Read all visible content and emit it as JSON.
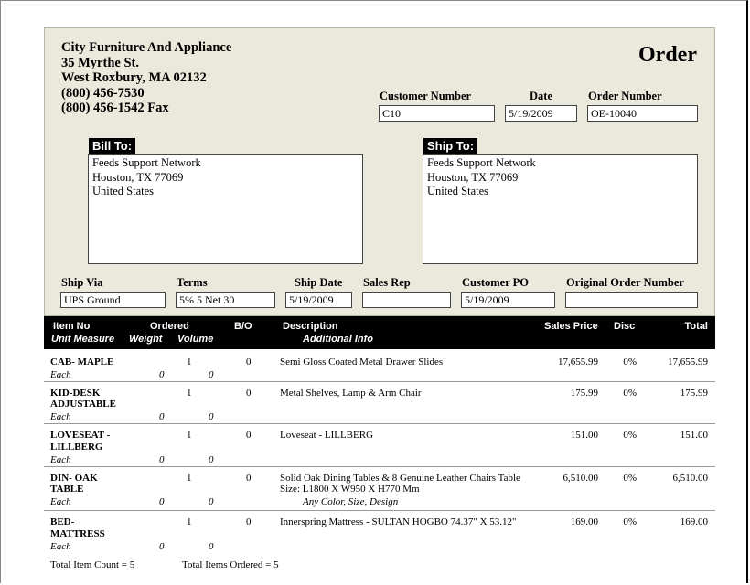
{
  "company": {
    "name": "City Furniture And Appliance",
    "street": "35 Myrthe St.",
    "city": "West Roxbury,  MA 02132",
    "phone": "(800) 456-7530",
    "fax": "(800) 456-1542 Fax"
  },
  "doc_title": "Order",
  "customer_number": {
    "label": "Customer Number",
    "value": "C10"
  },
  "date": {
    "label": "Date",
    "value": "5/19/2009"
  },
  "order_number": {
    "label": "Order Number",
    "value": "OE-10040"
  },
  "bill_to": {
    "label": "Bill To:",
    "line1": "Feeds Support Network",
    "line2": "Houston,  TX  77069",
    "line3": "United States"
  },
  "ship_to": {
    "label": "Ship To:",
    "line1": "Feeds Support Network",
    "line2": "Houston,  TX  77069",
    "line3": "United States"
  },
  "ship_via": {
    "label": "Ship Via",
    "value": "UPS Ground"
  },
  "terms": {
    "label": "Terms",
    "value": "5% 5 Net 30"
  },
  "ship_date": {
    "label": "Ship Date",
    "value": "5/19/2009"
  },
  "sales_rep": {
    "label": "Sales Rep",
    "value": ""
  },
  "customer_po": {
    "label": "Customer PO",
    "value": "5/19/2009"
  },
  "original_order": {
    "label": "Original Order Number",
    "value": ""
  },
  "columns": {
    "item_no": "Item No",
    "ordered": "Ordered",
    "bo": "B/O",
    "description": "Description",
    "sales_price": "Sales Price",
    "disc": "Disc",
    "total": "Total",
    "unit_measure": "Unit Measure",
    "weight": "Weight",
    "volume": "Volume",
    "additional_info": "Additional Info"
  },
  "items": [
    {
      "item_line1": "CAB- MAPLE",
      "item_line2": "",
      "ordered": "1",
      "bo": "0",
      "desc_line1": "Semi Gloss Coated Metal Drawer Slides",
      "desc_line2": "",
      "additional_info": "",
      "price": "17,655.99",
      "disc": "0%",
      "total": "17,655.99",
      "unit": "Each",
      "weight": "0",
      "volume": "0"
    },
    {
      "item_line1": "KID-DESK",
      "item_line2": "ADJUSTABLE",
      "ordered": "1",
      "bo": "0",
      "desc_line1": "Metal Shelves, Lamp  &  Arm Chair",
      "desc_line2": "",
      "additional_info": "",
      "price": "175.99",
      "disc": "0%",
      "total": "175.99",
      "unit": "Each",
      "weight": "0",
      "volume": "0"
    },
    {
      "item_line1": "LOVESEAT -",
      "item_line2": "LILLBERG",
      "ordered": "1",
      "bo": "0",
      "desc_line1": "Loveseat - LILLBERG",
      "desc_line2": "",
      "additional_info": "",
      "price": "151.00",
      "disc": "0%",
      "total": "151.00",
      "unit": "Each",
      "weight": "0",
      "volume": "0"
    },
    {
      "item_line1": "DIN- OAK",
      "item_line2": "TABLE",
      "ordered": "1",
      "bo": "0",
      "desc_line1": "Solid Oak Dining Tables & 8 Genuine Leather Chairs Table",
      "desc_line2": "Size: L1800 X W950 X H770 Mm",
      "additional_info": "Any Color, Size, Design",
      "price": "6,510.00",
      "disc": "0%",
      "total": "6,510.00",
      "unit": "Each",
      "weight": "0",
      "volume": "0"
    },
    {
      "item_line1": "BED-",
      "item_line2": "MATTRESS",
      "ordered": "1",
      "bo": "0",
      "desc_line1": "Innerspring Mattress - SULTAN HOGBO 74.37\" X 53.12\"",
      "desc_line2": "",
      "additional_info": "",
      "price": "169.00",
      "disc": "0%",
      "total": "169.00",
      "unit": "Each",
      "weight": "0",
      "volume": "0"
    }
  ],
  "totals": {
    "item_count": "Total Item Count = 5",
    "items_ordered": "Total Items Ordered = 5"
  }
}
